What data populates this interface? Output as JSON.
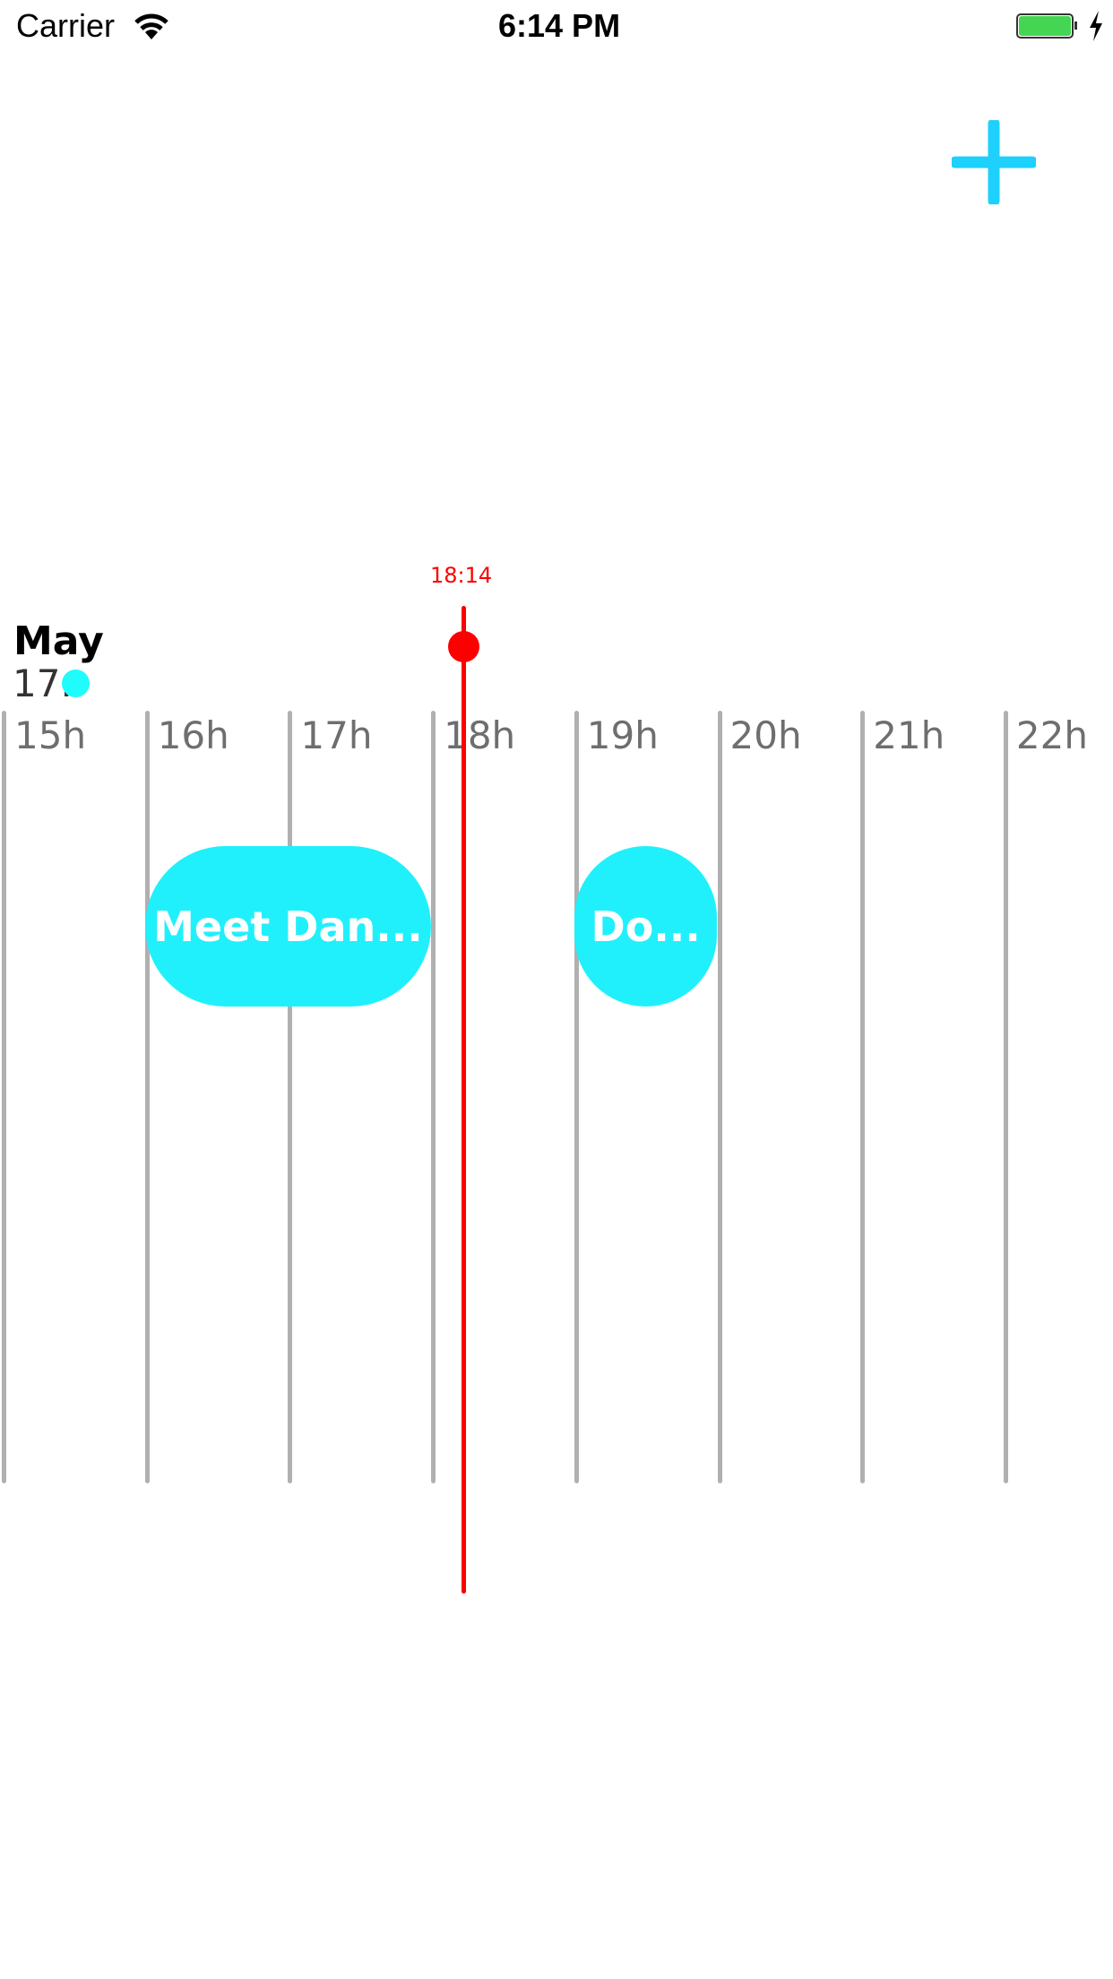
{
  "status_bar": {
    "carrier": "Carrier",
    "time": "6:14 PM",
    "battery_color": "#44d552",
    "wifi_icon": "wifi-icon",
    "charging_icon": "bolt-icon"
  },
  "toolbar": {
    "add_icon": "plus-icon",
    "accent": "#1ed0fc"
  },
  "date": {
    "month": "May",
    "day": "17.",
    "dot_color": "#20fcfc"
  },
  "now": {
    "label": "18:14",
    "color": "#fc0000"
  },
  "hours": [
    "15h",
    "16h",
    "17h",
    "18h",
    "19h",
    "20h",
    "21h",
    "22h"
  ],
  "events": [
    {
      "title": "Meet Dan...",
      "start": "16h",
      "end": "18h"
    },
    {
      "title": "Do...",
      "start": "19h",
      "end": "20h"
    }
  ],
  "event_color": "#20f0fc"
}
